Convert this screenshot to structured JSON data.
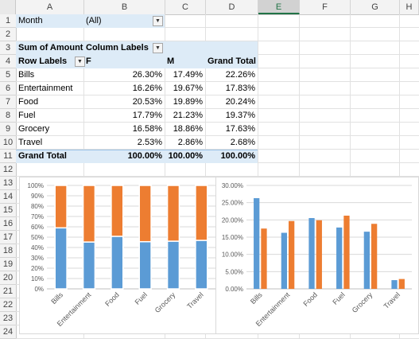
{
  "columns": [
    "A",
    "B",
    "C",
    "D",
    "E",
    "F",
    "G",
    "H"
  ],
  "selected_column": "E",
  "rows": [
    "1",
    "2",
    "3",
    "4",
    "5",
    "6",
    "7",
    "8",
    "9",
    "10",
    "11",
    "12",
    "13",
    "14",
    "15",
    "16",
    "17",
    "18",
    "19",
    "20",
    "21",
    "22",
    "23",
    "24"
  ],
  "filter": {
    "label": "Month",
    "value": "(All)"
  },
  "pivot": {
    "corner_label": "Sum of Amount",
    "column_labels_label": "Column Labels",
    "row_labels_label": "Row Labels",
    "col_headers": [
      "F",
      "M",
      "Grand Total"
    ],
    "body": [
      {
        "label": "Bills",
        "f": "26.30%",
        "m": "17.49%",
        "total": "22.26%"
      },
      {
        "label": "Entertainment",
        "f": "16.26%",
        "m": "19.67%",
        "total": "17.83%"
      },
      {
        "label": "Food",
        "f": "20.53%",
        "m": "19.89%",
        "total": "20.24%"
      },
      {
        "label": "Fuel",
        "f": "17.79%",
        "m": "21.23%",
        "total": "19.37%"
      },
      {
        "label": "Grocery",
        "f": "16.58%",
        "m": "18.86%",
        "total": "17.63%"
      },
      {
        "label": "Travel",
        "f": "2.53%",
        "m": "2.86%",
        "total": "2.68%"
      }
    ],
    "grand_total": {
      "label": "Grand Total",
      "f": "100.00%",
      "m": "100.00%",
      "total": "100.00%"
    }
  },
  "colors": {
    "series_f": "#5b9bd5",
    "series_m": "#ed7d31",
    "total_band": "#ddebf7"
  },
  "chart_data": [
    {
      "type": "bar",
      "stacked": "percent",
      "categories": [
        "Bills",
        "Entertainment",
        "Food",
        "Fuel",
        "Grocery",
        "Travel"
      ],
      "series": [
        {
          "values": [
            59.0,
            45.3,
            50.8,
            45.6,
            46.1,
            46.9
          ]
        },
        {
          "values": [
            41.0,
            54.7,
            49.2,
            54.4,
            53.9,
            53.1
          ]
        }
      ],
      "yticks": [
        "0%",
        "10%",
        "20%",
        "30%",
        "40%",
        "50%",
        "60%",
        "70%",
        "80%",
        "90%",
        "100%"
      ],
      "ylim": [
        0,
        100
      ],
      "grid": true
    },
    {
      "type": "bar",
      "categories": [
        "Bills",
        "Entertainment",
        "Food",
        "Fuel",
        "Grocery",
        "Travel"
      ],
      "series": [
        {
          "values": [
            26.3,
            16.26,
            20.53,
            17.79,
            16.58,
            2.53
          ]
        },
        {
          "values": [
            17.49,
            19.67,
            19.89,
            21.23,
            18.86,
            2.86
          ]
        }
      ],
      "yticks": [
        "0.00%",
        "5.00%",
        "10.00%",
        "15.00%",
        "20.00%",
        "25.00%",
        "30.00%"
      ],
      "ylim": [
        0,
        30
      ],
      "grid": true
    }
  ]
}
